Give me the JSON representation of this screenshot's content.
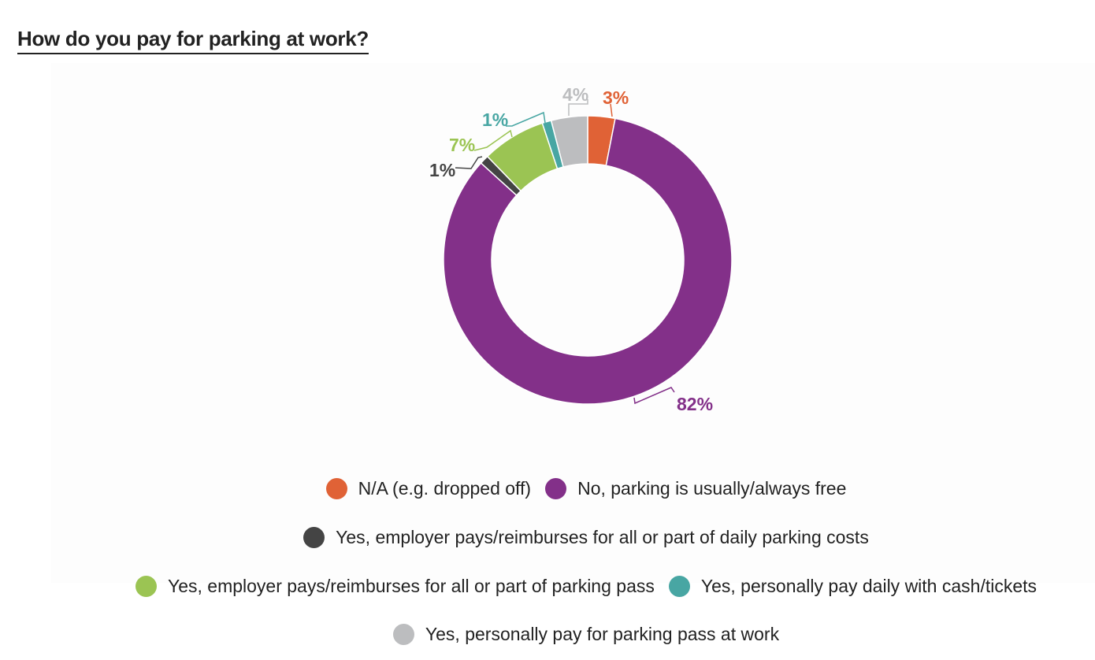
{
  "title": "How do you pay for parking at work?",
  "chart_data": {
    "type": "pie",
    "subtype": "donut",
    "title": "How do you pay for parking at work?",
    "legend_position": "bottom",
    "slices": [
      {
        "name": "N/A (e.g. dropped off)",
        "value": 3,
        "label": "3%",
        "color": "#e06236"
      },
      {
        "name": "No, parking is usually/always free",
        "value": 82,
        "label": "82%",
        "color": "#833089"
      },
      {
        "name": "Yes, employer pays/reimburses for all or part of daily parking costs",
        "value": 1,
        "label": "1%",
        "color": "#444444"
      },
      {
        "name": "Yes, employer pays/reimburses for all or part of parking pass",
        "value": 7,
        "label": "7%",
        "color": "#9bc453"
      },
      {
        "name": "Yes, personally pay daily with cash/tickets",
        "value": 1,
        "label": "1%",
        "color": "#48a6a3"
      },
      {
        "name": "Yes, personally pay for parking pass at work",
        "value": 4,
        "label": "4%",
        "color": "#bcbdbf"
      }
    ]
  }
}
